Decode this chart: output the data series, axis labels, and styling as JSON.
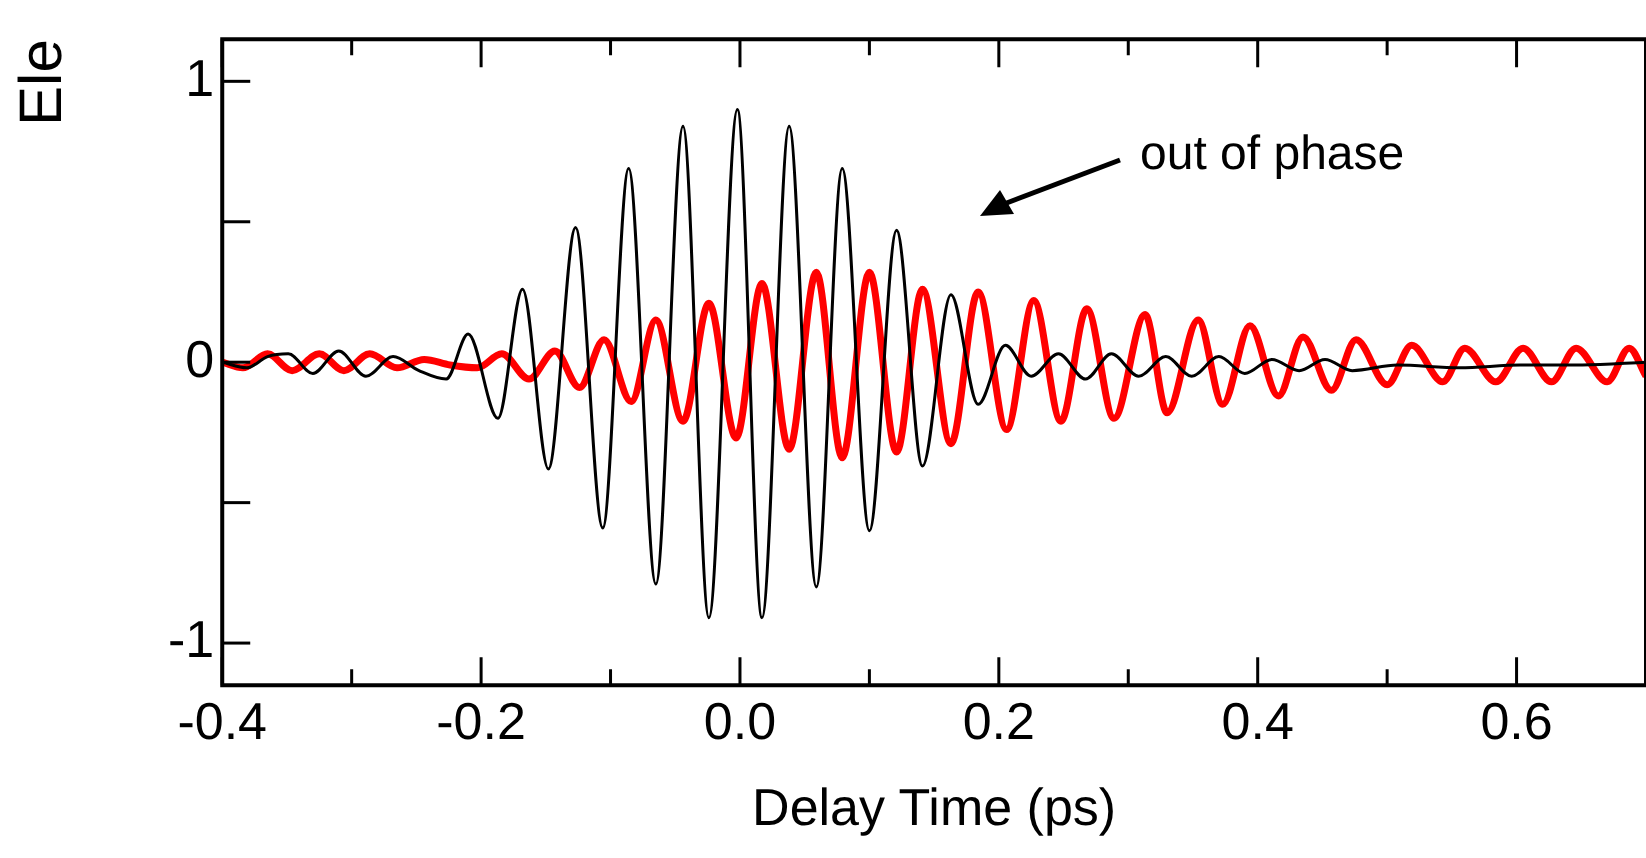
{
  "chart_data": {
    "type": "line",
    "xlabel": "Delay Time (ps)",
    "ylabel": "Ele",
    "xlim": [
      -0.4,
      0.7
    ],
    "xticks": [
      -0.4,
      {
        "value": -0.3,
        "label": null
      },
      -0.2,
      {
        "value": -0.1,
        "label": null
      },
      {
        "value": 0,
        "label": "0.0"
      },
      {
        "value": 0.1,
        "label": null
      },
      0.2,
      {
        "value": 0.3,
        "label": null
      },
      0.4,
      {
        "value": 0.5,
        "label": null
      },
      0.6
    ],
    "ylim": [
      -1.15,
      1.15
    ],
    "yticks": [
      -1,
      {
        "value": -0.5,
        "label": null
      },
      0,
      {
        "value": 0.5,
        "label": null
      },
      1
    ],
    "grid": false,
    "legend": false,
    "marker": "none",
    "line_style": "solid",
    "annotations": [
      "out of phase"
    ],
    "series": [
      {
        "color": "#000000",
        "x": [
          -0.4,
          -0.381,
          -0.365,
          -0.349,
          -0.33,
          -0.31,
          -0.289,
          -0.268,
          -0.248,
          -0.227,
          -0.21,
          -0.187,
          -0.168,
          -0.148,
          -0.127,
          -0.106,
          -0.086,
          -0.065,
          -0.044,
          -0.024,
          -0.002,
          0.017,
          0.038,
          0.059,
          0.079,
          0.1,
          0.121,
          0.141,
          0.163,
          0.184,
          0.205,
          0.225,
          0.246,
          0.267,
          0.287,
          0.308,
          0.329,
          0.349,
          0.37,
          0.39,
          0.411,
          0.432,
          0.452,
          0.473,
          0.508,
          0.556,
          0.603,
          0.651,
          0.7
        ],
        "values": [
          0,
          -0.02,
          0.02,
          0.03,
          -0.04,
          0.04,
          -0.05,
          0.02,
          -0.03,
          -0.06,
          0.1,
          -0.2,
          0.26,
          -0.38,
          0.48,
          -0.59,
          0.69,
          -0.79,
          0.84,
          -0.91,
          0.9,
          -0.91,
          0.84,
          -0.8,
          0.69,
          -0.6,
          0.47,
          -0.37,
          0.24,
          -0.15,
          0.06,
          -0.05,
          0.03,
          -0.06,
          0.03,
          -0.05,
          0.02,
          -0.05,
          0.02,
          -0.04,
          0.01,
          -0.03,
          0.01,
          -0.03,
          -0.01,
          -0.02,
          -0.01,
          -0.01,
          0
        ]
      },
      {
        "color": "#ff0000",
        "x": [
          -0.4,
          -0.384,
          -0.365,
          -0.346,
          -0.325,
          -0.306,
          -0.286,
          -0.265,
          -0.244,
          -0.224,
          -0.203,
          -0.184,
          -0.163,
          -0.143,
          -0.124,
          -0.105,
          -0.084,
          -0.065,
          -0.044,
          -0.024,
          -0.003,
          0.017,
          0.038,
          0.059,
          0.079,
          0.1,
          0.121,
          0.141,
          0.163,
          0.184,
          0.206,
          0.227,
          0.248,
          0.268,
          0.289,
          0.313,
          0.33,
          0.354,
          0.373,
          0.394,
          0.416,
          0.435,
          0.457,
          0.476,
          0.5,
          0.519,
          0.543,
          0.56,
          0.584,
          0.605,
          0.627,
          0.646,
          0.67,
          0.687,
          0.7
        ],
        "values": [
          0,
          -0.02,
          0.03,
          -0.03,
          0.03,
          -0.03,
          0.03,
          -0.02,
          0.01,
          -0.01,
          -0.02,
          0.03,
          -0.06,
          0.04,
          -0.09,
          0.08,
          -0.14,
          0.15,
          -0.21,
          0.21,
          -0.27,
          0.28,
          -0.31,
          0.32,
          -0.34,
          0.32,
          -0.32,
          0.26,
          -0.29,
          0.25,
          -0.24,
          0.22,
          -0.21,
          0.19,
          -0.2,
          0.17,
          -0.18,
          0.15,
          -0.15,
          0.13,
          -0.12,
          0.09,
          -0.1,
          0.08,
          -0.08,
          0.06,
          -0.07,
          0.05,
          -0.07,
          0.05,
          -0.07,
          0.05,
          -0.07,
          0.05,
          -0.05
        ]
      }
    ]
  }
}
